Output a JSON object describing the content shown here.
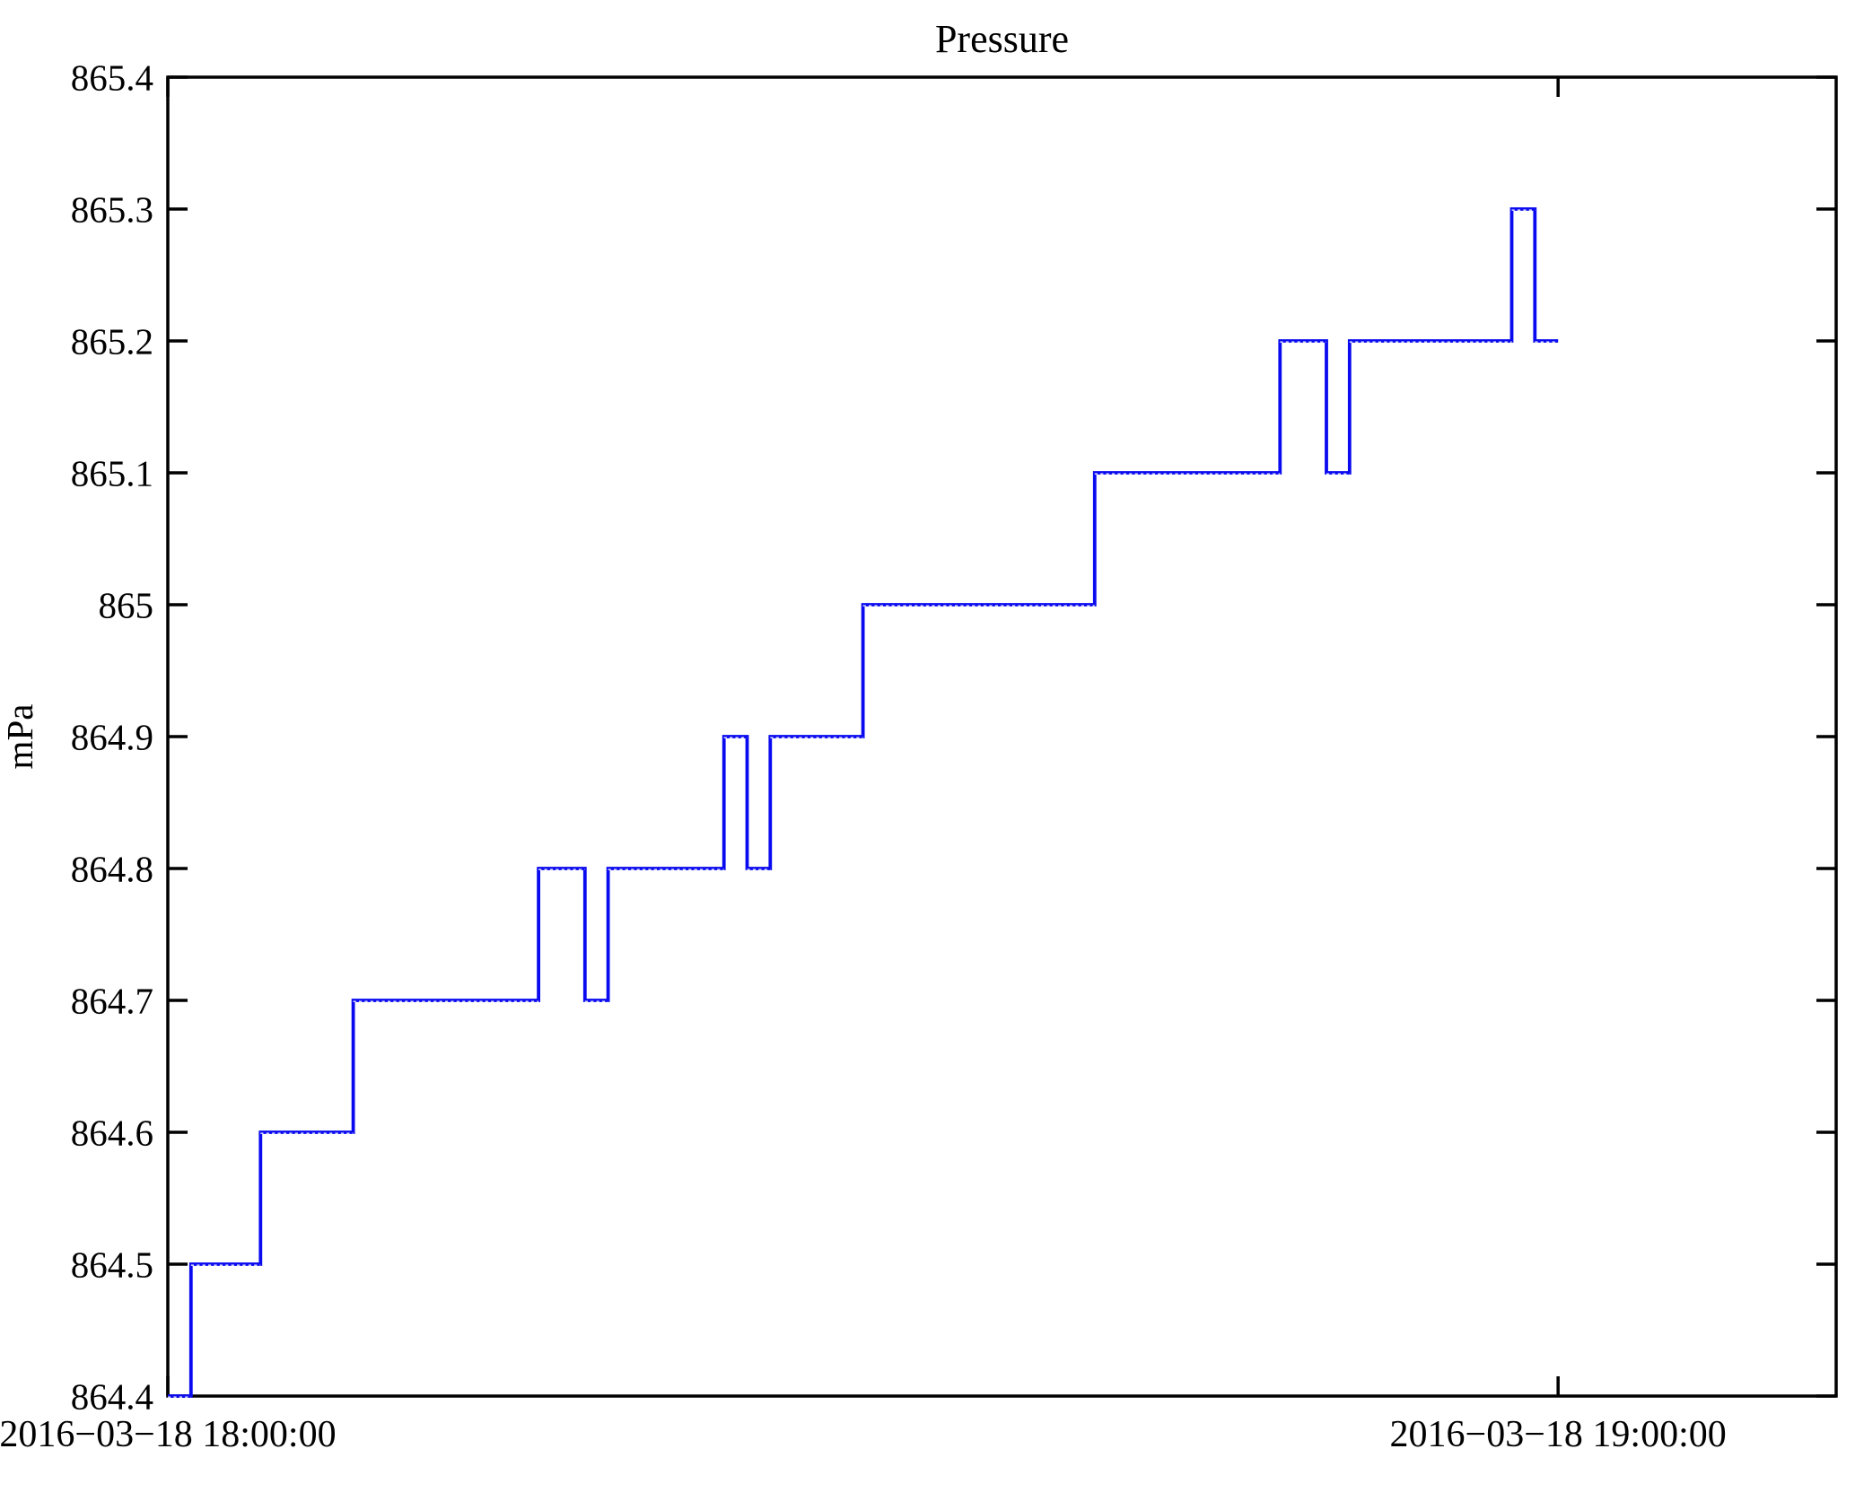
{
  "page": {
    "background": "#ffffff"
  },
  "chart_data": {
    "type": "line",
    "subtype": "step-post",
    "title": "Pressure",
    "xlabel": "",
    "ylabel": "mPa",
    "line_color": "#0a0af0",
    "axis_color": "#000000",
    "grid": false,
    "legend_position": "none",
    "ylim": [
      864.4,
      865.4
    ],
    "yticks": [
      864.4,
      864.5,
      864.6,
      864.7,
      864.8,
      864.9,
      865.0,
      865.1,
      865.2,
      865.3,
      865.4
    ],
    "ytick_labels": [
      "864.4",
      "864.5",
      "864.6",
      "864.7",
      "864.8",
      "864.9",
      "865",
      "865.1",
      "865.2",
      "865.3",
      "865.4"
    ],
    "xlim_minutes": [
      0,
      72
    ],
    "xticks": [
      {
        "minute": 0,
        "label": "2016−03−18 18:00:00"
      },
      {
        "minute": 60,
        "label": "2016−03−18 19:00:00"
      }
    ],
    "series": [
      {
        "name": "Pressure",
        "unit": "mPa",
        "x_minutes_after_1800": [
          0,
          1,
          4,
          8,
          16,
          18,
          19,
          24,
          25,
          26,
          30,
          40,
          48,
          50,
          51,
          58,
          59,
          60
        ],
        "values": [
          864.4,
          864.5,
          864.6,
          864.7,
          864.8,
          864.7,
          864.8,
          864.9,
          864.8,
          864.9,
          865.0,
          865.1,
          865.2,
          865.1,
          865.2,
          865.3,
          865.2,
          865.2
        ]
      }
    ]
  }
}
